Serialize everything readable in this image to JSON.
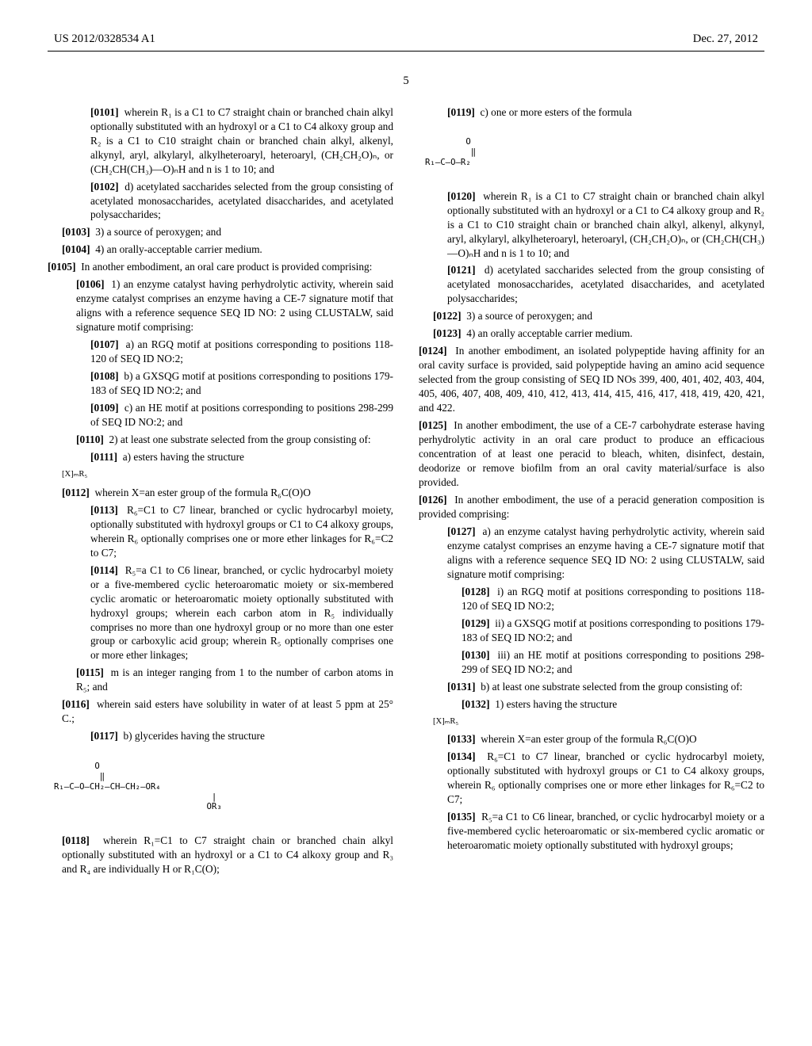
{
  "header": {
    "pubnum": "US 2012/0328534 A1",
    "date": "Dec. 27, 2012"
  },
  "pagenum": "5",
  "left": {
    "p0101_num": "[0101]",
    "p0101": "wherein R₁ is a C1 to C7 straight chain or branched chain alkyl optionally substituted with an hydroxyl or a C1 to C4 alkoxy group and R₂ is a C1 to C10 straight chain or branched chain alkyl, alkenyl, alkynyl, aryl, alkylaryl, alkylheteroaryl, heteroaryl, (CH₂CH₂O)ₙ, or (CH₂CH(CH₃)—O)ₙH and n is 1 to 10; and",
    "p0102_num": "[0102]",
    "p0102": "d) acetylated saccharides selected from the group consisting of acetylated monosaccharides, acetylated disaccharides, and acetylated polysaccharides;",
    "p0103_num": "[0103]",
    "p0103": "3) a source of peroxygen; and",
    "p0104_num": "[0104]",
    "p0104": "4) an orally-acceptable carrier medium.",
    "p0105_num": "[0105]",
    "p0105": "In another embodiment, an oral care product is provided comprising:",
    "p0106_num": "[0106]",
    "p0106": "1) an enzyme catalyst having perhydrolytic activity, wherein said enzyme catalyst comprises an enzyme having a CE-7 signature motif that aligns with a reference sequence SEQ ID NO: 2 using CLUSTALW, said signature motif comprising:",
    "p0107_num": "[0107]",
    "p0107": "a) an RGQ motif at positions corresponding to positions 118-120 of SEQ ID NO:2;",
    "p0108_num": "[0108]",
    "p0108": "b) a GXSQG motif at positions corresponding to positions 179-183 of SEQ ID NO:2; and",
    "p0109_num": "[0109]",
    "p0109": "c) an HE motif at positions corresponding to positions 298-299 of SEQ ID NO:2; and",
    "p0110_num": "[0110]",
    "p0110": "2) at least one substrate selected from the group consisting of:",
    "p0111_num": "[0111]",
    "p0111": "a) esters having the structure",
    "formula_XmR5_a": "[X]ₘR₅",
    "p0112_num": "[0112]",
    "p0112": "wherein X=an ester group of the formula R₆C(O)O",
    "p0113_num": "[0113]",
    "p0113": "R₆=C1 to C7 linear, branched or cyclic hydrocarbyl moiety, optionally substituted with hydroxyl groups or C1 to C4 alkoxy groups, wherein R₆ optionally comprises one or more ether linkages for R₆=C2 to C7;",
    "p0114_num": "[0114]",
    "p0114": "R₅=a C1 to C6 linear, branched, or cyclic hydrocarbyl moiety or a five-membered cyclic heteroaromatic moiety or six-membered cyclic aromatic or heteroaromatic moiety optionally substituted with hydroxyl groups; wherein each carbon atom in R₅ individually comprises no more than one hydroxyl group or no more than one ester group or carboxylic acid group; wherein R₅ optionally comprises one or more ether linkages;",
    "p0115_num": "[0115]",
    "p0115": "m is an integer ranging from 1 to the number of carbon atoms in R₅; and",
    "p0116_num": "[0116]",
    "p0116": "wherein said esters have solubility in water of at least 5 ppm at 25° C.;",
    "p0117_num": "[0117]",
    "p0117": "b) glycerides having the structure",
    "formula_glyceride_l1": "        O",
    "formula_glyceride_l2": "         ‖",
    "formula_glyceride_l3": "R₁—C—O—CH₂—CH—CH₂—OR₄",
    "formula_glyceride_l4": "                               |",
    "formula_glyceride_l5": "                              OR₃",
    "p0118_num": "[0118]",
    "p0118": "wherein R₁=C1 to C7 straight chain or branched chain alkyl optionally substituted with an hydroxyl or a C1 to C4 alkoxy group and R₃ and R₄ are individually H or R₁C(O);"
  },
  "right": {
    "p0119_num": "[0119]",
    "p0119": "c) one or more esters of the formula",
    "formula_ester_l1": "        O",
    "formula_ester_l2": "         ‖",
    "formula_ester_l3": "R₁—C—O—R₂",
    "p0120_num": "[0120]",
    "p0120": "wherein R₁ is a C1 to C7 straight chain or branched chain alkyl optionally substituted with an hydroxyl or a C1 to C4 alkoxy group and R₂ is a C1 to C10 straight chain or branched chain alkyl, alkenyl, alkynyl, aryl, alkylaryl, alkylheteroaryl, heteroaryl, (CH₂CH₂O)ₙ, or (CH₂CH(CH₃)—O)ₙH and n is 1 to 10; and",
    "p0121_num": "[0121]",
    "p0121": "d) acetylated saccharides selected from the group consisting of acetylated monosaccharides, acetylated disaccharides, and acetylated polysaccharides;",
    "p0122_num": "[0122]",
    "p0122": "3) a source of peroxygen; and",
    "p0123_num": "[0123]",
    "p0123": "4) an orally acceptable carrier medium.",
    "p0124_num": "[0124]",
    "p0124": "In another embodiment, an isolated polypeptide having affinity for an oral cavity surface is provided, said polypeptide having an amino acid sequence selected from the group consisting of SEQ ID NOs 399, 400, 401, 402, 403, 404, 405, 406, 407, 408, 409, 410, 412, 413, 414, 415, 416, 417, 418, 419, 420, 421, and 422.",
    "p0125_num": "[0125]",
    "p0125": "In another embodiment, the use of a CE-7 carbohydrate esterase having perhydrolytic activity in an oral care product to produce an efficacious concentration of at least one peracid to bleach, whiten, disinfect, destain, deodorize or remove biofilm from an oral cavity material/surface is also provided.",
    "p0126_num": "[0126]",
    "p0126": "In another embodiment, the use of a peracid generation composition is provided comprising:",
    "p0127_num": "[0127]",
    "p0127": "a) an enzyme catalyst having perhydrolytic activity, wherein said enzyme catalyst comprises an enzyme having a CE-7 signature motif that aligns with a reference sequence SEQ ID NO: 2 using CLUSTALW, said signature motif comprising:",
    "p0128_num": "[0128]",
    "p0128": "i) an RGQ motif at positions corresponding to positions 118-120 of SEQ ID NO:2;",
    "p0129_num": "[0129]",
    "p0129": "ii) a GXSQG motif at positions corresponding to positions 179-183 of SEQ ID NO:2; and",
    "p0130_num": "[0130]",
    "p0130": "iii) an HE motif at positions corresponding to positions 298-299 of SEQ ID NO:2; and",
    "p0131_num": "[0131]",
    "p0131": "b) at least one substrate selected from the group consisting of:",
    "p0132_num": "[0132]",
    "p0132": "1) esters having the structure",
    "formula_XmR5_b": "[X]ₘR₅",
    "p0133_num": "[0133]",
    "p0133": "wherein X=an ester group of the formula R₆C(O)O",
    "p0134_num": "[0134]",
    "p0134": "R₆=C1 to C7 linear, branched or cyclic hydrocarbyl moiety, optionally substituted with hydroxyl groups or C1 to C4 alkoxy groups, wherein R₆ optionally comprises one or more ether linkages for R₆=C2 to C7;",
    "p0135_num": "[0135]",
    "p0135": "R₅=a C1 to C6 linear, branched, or cyclic hydrocarbyl moiety or a five-membered cyclic heteroaromatic or six-membered cyclic aromatic or heteroaromatic moiety optionally substituted with hydroxyl groups;"
  }
}
